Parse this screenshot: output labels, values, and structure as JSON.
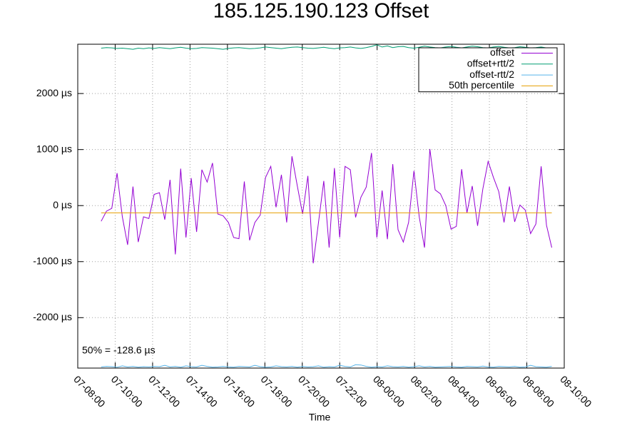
{
  "chart_data": {
    "type": "line",
    "title": "185.125.190.123 Offset",
    "x_label": "Time",
    "annotation": "50% = -128.6 µs",
    "grid": true,
    "legend": "top-right",
    "xlim": [
      "07-08:00",
      "08-10:00"
    ],
    "xticks": [
      "07-08:00",
      "07-10:00",
      "07-12:00",
      "07-14:00",
      "07-16:00",
      "07-18:00",
      "07-20:00",
      "07-22:00",
      "08-00:00",
      "08-02:00",
      "08-04:00",
      "08-06:00",
      "08-08:00",
      "08-10:00"
    ],
    "ylim": [
      -2900,
      2880
    ],
    "yticks": [
      {
        "value": -2000,
        "label": "-2000 µs"
      },
      {
        "value": -1000,
        "label": "-1000 µs"
      },
      {
        "value": 0,
        "label": "0 µs"
      },
      {
        "value": 1000,
        "label": "1000 µs"
      },
      {
        "value": 2000,
        "label": "2000 µs"
      }
    ],
    "x": [
      "07-09:15",
      "07-09:32",
      "07-09:49",
      "07-10:06",
      "07-10:23",
      "07-10:40",
      "07-10:57",
      "07-11:14",
      "07-11:31",
      "07-11:48",
      "07-12:05",
      "07-12:22",
      "07-12:39",
      "07-12:56",
      "07-13:13",
      "07-13:30",
      "07-13:47",
      "07-14:04",
      "07-14:21",
      "07-14:38",
      "07-14:55",
      "07-15:12",
      "07-15:29",
      "07-15:46",
      "07-16:03",
      "07-16:20",
      "07-16:37",
      "07-16:54",
      "07-17:11",
      "07-17:28",
      "07-17:45",
      "07-18:02",
      "07-18:19",
      "07-18:36",
      "07-18:53",
      "07-19:10",
      "07-19:27",
      "07-19:44",
      "07-20:01",
      "07-20:18",
      "07-20:35",
      "07-20:52",
      "07-21:09",
      "07-21:26",
      "07-21:43",
      "07-22:00",
      "07-22:17",
      "07-22:34",
      "07-22:51",
      "07-23:08",
      "07-23:25",
      "07-23:42",
      "07-23:59",
      "08-00:16",
      "08-00:33",
      "08-00:50",
      "08-01:07",
      "08-01:24",
      "08-01:41",
      "08-01:58",
      "08-02:15",
      "08-02:32",
      "08-02:49",
      "08-03:06",
      "08-03:23",
      "08-03:40",
      "08-03:57",
      "08-04:14",
      "08-04:31",
      "08-04:48",
      "08-05:05",
      "08-05:22",
      "08-05:39",
      "08-05:56",
      "08-06:13",
      "08-06:30",
      "08-06:47",
      "08-07:04",
      "08-07:21",
      "08-07:38",
      "08-07:55",
      "08-08:12",
      "08-08:29",
      "08-08:46",
      "08-09:03",
      "08-09:20"
    ],
    "series": [
      {
        "name": "offset",
        "color": "#9400d3",
        "values": [
          -280,
          -100,
          -50,
          580,
          -200,
          -700,
          340,
          -650,
          -200,
          -230,
          200,
          230,
          -250,
          460,
          -870,
          660,
          -570,
          490,
          -470,
          640,
          420,
          760,
          -150,
          -180,
          -300,
          -570,
          -590,
          430,
          -620,
          -300,
          -170,
          500,
          700,
          -30,
          550,
          -300,
          880,
          350,
          -150,
          530,
          -1030,
          -300,
          440,
          -750,
          670,
          -570,
          700,
          640,
          -210,
          150,
          330,
          940,
          -570,
          270,
          -600,
          740,
          -430,
          -650,
          -300,
          620,
          -200,
          -750,
          1010,
          280,
          210,
          0,
          -420,
          -370,
          650,
          -130,
          350,
          -360,
          300,
          790,
          500,
          250,
          -300,
          340,
          -290,
          10,
          -80,
          -500,
          -330,
          700,
          -350,
          -750
        ]
      },
      {
        "name": "offset+rtt/2",
        "color": "#009e73",
        "values": [
          2810,
          2820,
          2815,
          2805,
          2810,
          2800,
          2790,
          2810,
          2800,
          2815,
          2805,
          2820,
          2810,
          2800,
          2815,
          2825,
          2810,
          2800,
          2805,
          2820,
          2815,
          2810,
          2800,
          2790,
          2805,
          2815,
          2820,
          2810,
          2800,
          2805,
          2815,
          2830,
          2820,
          2810,
          2800,
          2815,
          2825,
          2830,
          2820,
          2810,
          2805,
          2815,
          2825,
          2810,
          2800,
          2815,
          2820,
          2830,
          2815,
          2805,
          2820,
          2840,
          2870,
          2830,
          2850,
          2820,
          2835,
          2840,
          2820,
          2810,
          2825,
          2845,
          2830,
          2820,
          2815,
          2830,
          2840,
          2825,
          2815,
          2830,
          2845,
          2835,
          2820,
          2815,
          2830,
          2840,
          2825,
          2815,
          2820,
          2835,
          2825,
          2815,
          2820,
          2830,
          2815,
          2810
        ]
      },
      {
        "name": "offset-rtt/2",
        "color": "#56b4e9",
        "values": [
          -2880,
          -2870,
          -2875,
          -2885,
          -2860,
          -2880,
          -2870,
          -2885,
          -2875,
          -2880,
          -2870,
          -2875,
          -2850,
          -2880,
          -2870,
          -2885,
          -2860,
          -2875,
          -2880,
          -2850,
          -2870,
          -2885,
          -2880,
          -2870,
          -2880,
          -2885,
          -2870,
          -2875,
          -2880,
          -2850,
          -2875,
          -2885,
          -2880,
          -2860,
          -2875,
          -2880,
          -2870,
          -2885,
          -2870,
          -2880,
          -2875,
          -2860,
          -2885,
          -2875,
          -2880,
          -2850,
          -2870,
          -2880,
          -2840,
          -2845,
          -2870,
          -2885,
          -2875,
          -2880,
          -2860,
          -2875,
          -2880,
          -2870,
          -2885,
          -2875,
          -2860,
          -2880,
          -2870,
          -2885,
          -2880,
          -2875,
          -2870,
          -2880,
          -2885,
          -2870,
          -2875,
          -2880,
          -2865,
          -2880,
          -2885,
          -2870,
          -2875,
          -2880,
          -2870,
          -2885,
          -2880,
          -2850,
          -2875,
          -2880,
          -2885,
          -2870
        ]
      }
    ],
    "hline": {
      "name": "50th percentile",
      "color": "#e69f00",
      "value": -128.6
    }
  }
}
